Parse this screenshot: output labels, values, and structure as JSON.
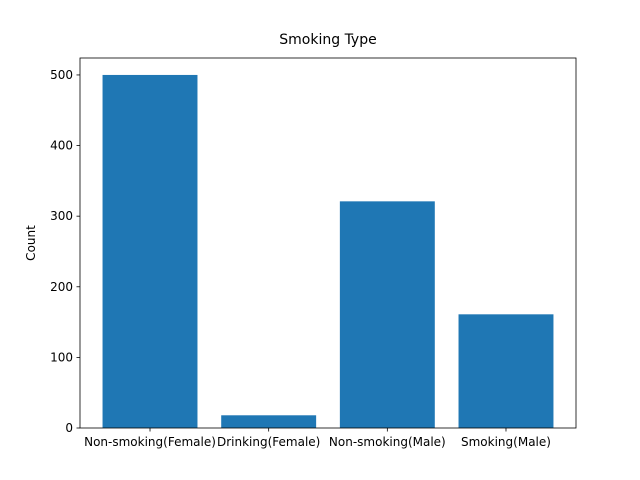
{
  "chart_data": {
    "type": "bar",
    "title": "Smoking Type",
    "y_label": "Count",
    "categories": [
      "Non-smoking(Female)",
      "Drinking(Female)",
      "Non-smoking(Male)",
      "Smoking(Male)"
    ],
    "values": [
      500,
      18,
      321,
      161
    ],
    "color": "#1f77b4",
    "ylim": [
      0,
      524
    ],
    "yticks": [
      0,
      100,
      200,
      300,
      400,
      500
    ]
  }
}
